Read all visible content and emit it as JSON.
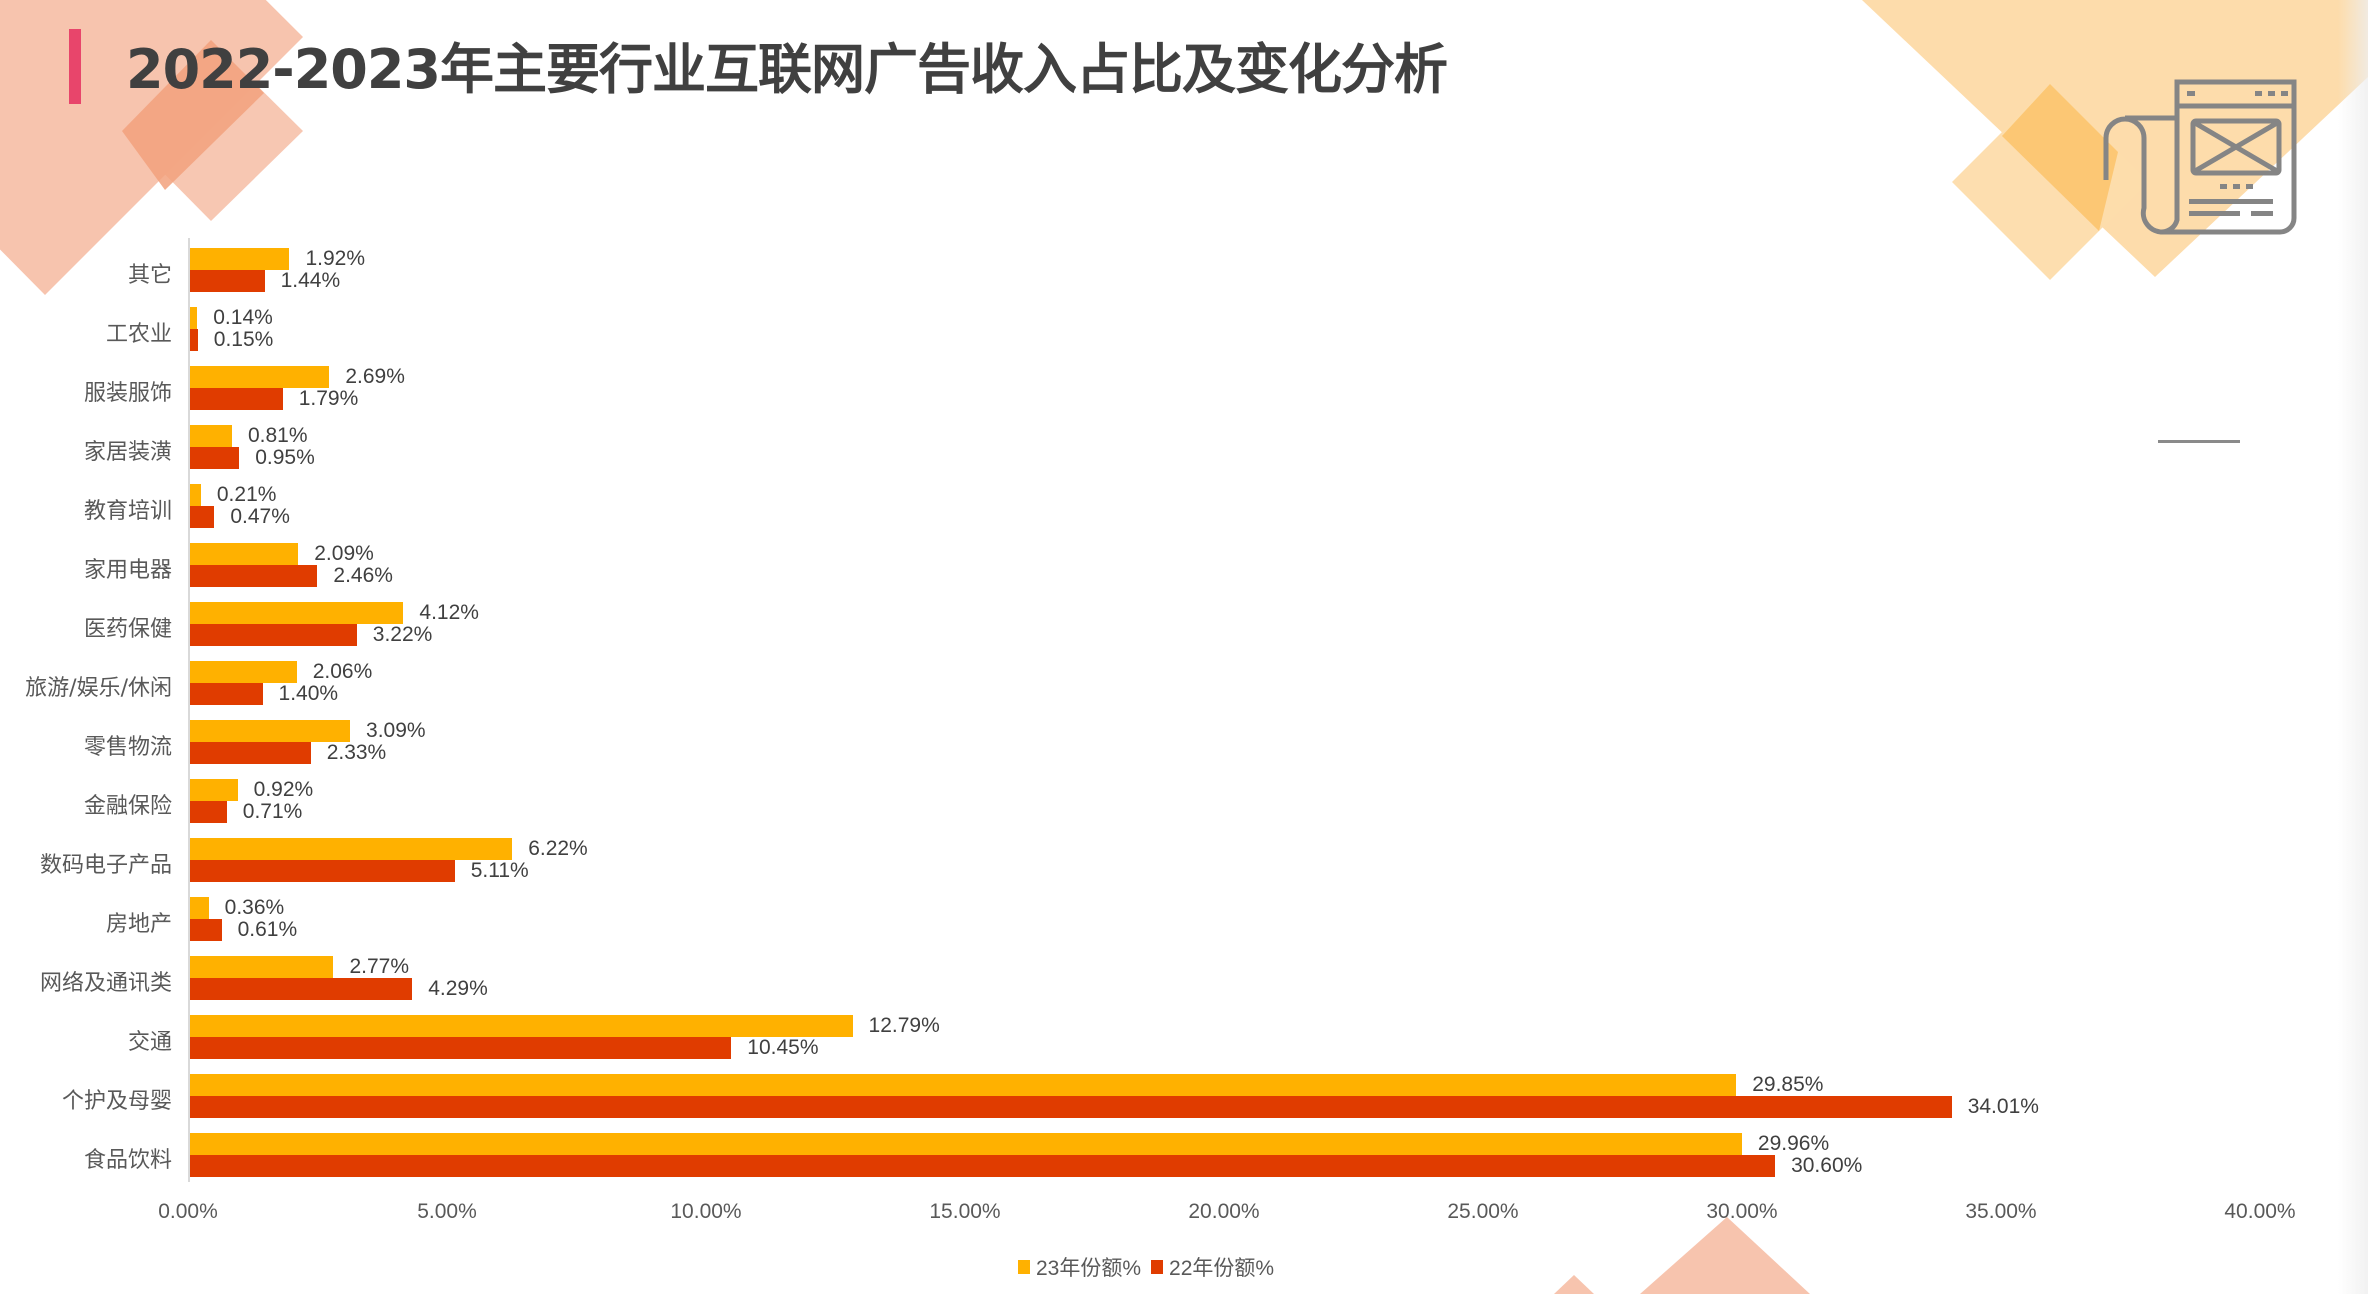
{
  "title": "2022-2023年主要行业互联网广告收入占比及变化分析",
  "colors": {
    "accent_bar": "#E8456B",
    "series_23": "#FFB100",
    "series_22": "#E03C00",
    "deco_salmon": "#F7C4AE",
    "deco_salmon_dark": "#F2A17C",
    "deco_orange": "#FDDCAB",
    "deco_orange_dark": "#FCC46E"
  },
  "icon": "newspaper-scroll-icon",
  "chart_data": {
    "type": "bar",
    "orientation": "horizontal",
    "title": "2022-2023年主要行业互联网广告收入占比及变化分析",
    "xlabel": "",
    "ylabel": "",
    "xlim": [
      0,
      40
    ],
    "x_ticks": [
      "0.00%",
      "5.00%",
      "10.00%",
      "15.00%",
      "20.00%",
      "25.00%",
      "30.00%",
      "35.00%",
      "40.00%"
    ],
    "grid": false,
    "legend_position": "bottom",
    "categories": [
      "其它",
      "工农业",
      "服装服饰",
      "家居装潢",
      "教育培训",
      "家用电器",
      "医药保健",
      "旅游/娱乐/休闲",
      "零售物流",
      "金融保险",
      "数码电子产品",
      "房地产",
      "网络及通讯类",
      "交通",
      "个护及母婴",
      "食品饮料"
    ],
    "series": [
      {
        "name": "23年份额%",
        "color": "#FFB100",
        "values": [
          1.92,
          0.14,
          2.69,
          0.81,
          0.21,
          2.09,
          4.12,
          2.06,
          3.09,
          0.92,
          6.22,
          0.36,
          2.77,
          12.79,
          29.85,
          29.96
        ],
        "labels": [
          "1.92%",
          "0.14%",
          "2.69%",
          "0.81%",
          "0.21%",
          "2.09%",
          "4.12%",
          "2.06%",
          "3.09%",
          "0.92%",
          "6.22%",
          "0.36%",
          "2.77%",
          "12.79%",
          "29.85%",
          "29.96%"
        ]
      },
      {
        "name": "22年份额%",
        "color": "#E03C00",
        "values": [
          1.44,
          0.15,
          1.79,
          0.95,
          0.47,
          2.46,
          3.22,
          1.4,
          2.33,
          0.71,
          5.11,
          0.61,
          4.29,
          10.45,
          34.01,
          30.6
        ],
        "labels": [
          "1.44%",
          "0.15%",
          "1.79%",
          "0.95%",
          "0.47%",
          "2.46%",
          "3.22%",
          "1.40%",
          "2.33%",
          "0.71%",
          "5.11%",
          "0.61%",
          "4.29%",
          "10.45%",
          "34.01%",
          "30.60%"
        ]
      }
    ]
  },
  "legend": {
    "items": [
      {
        "label": "23年份额%",
        "color": "#FFB100"
      },
      {
        "label": "22年份额%",
        "color": "#E03C00"
      }
    ]
  }
}
